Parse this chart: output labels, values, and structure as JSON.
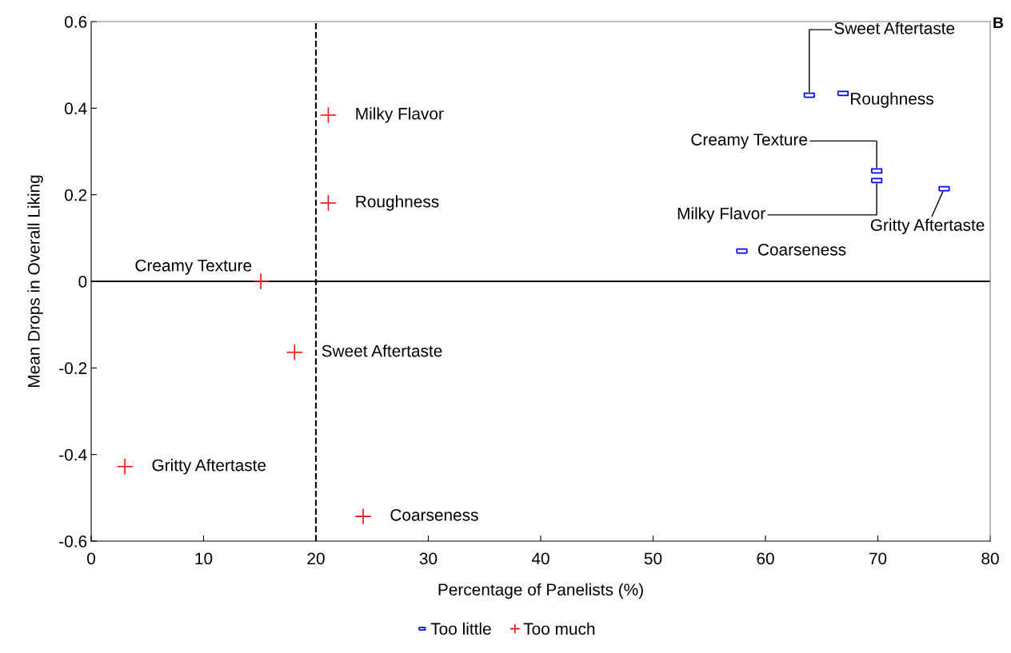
{
  "chart_data": {
    "type": "scatter",
    "xlabel": "Percentage of Panelists (%)",
    "ylabel": "Mean Drops in Overall Liking",
    "series": [
      {
        "name": "Too little",
        "color": "#0000ff",
        "marker": "square",
        "x": [
          63.9,
          66.9,
          69.9,
          69.9,
          75.9,
          57.9
        ],
        "values": [
          0.43,
          0.434,
          0.255,
          0.233,
          0.214,
          0.07
        ]
      },
      {
        "name": "Too much",
        "color": "#ff0000",
        "marker": "cross",
        "x": [
          21.1,
          21.1,
          15.1,
          18.1,
          3.0,
          24.2
        ],
        "values": [
          0.384,
          0.181,
          0.0,
          -0.164,
          -0.428,
          -0.543
        ]
      }
    ],
    "xlim": [
      0,
      80
    ],
    "xticks": [
      0,
      10,
      20,
      30,
      40,
      50,
      60,
      70,
      80
    ],
    "ylim": [
      -0.6,
      0.6
    ],
    "yticks": [
      -0.6,
      -0.4,
      -0.2,
      0,
      0.2,
      0.4,
      0.6
    ],
    "ref_lines": [
      {
        "axis": "x",
        "value": 20,
        "color": "#000000",
        "line_style": "dashed"
      },
      {
        "axis": "y",
        "value": 0,
        "color": "#000000",
        "line_style": "solid"
      }
    ],
    "annotations": [
      {
        "text": "Sweet Aftertaste",
        "x": 63.9,
        "y": 0.43
      },
      {
        "text": "Roughness",
        "x": 66.9,
        "y": 0.434
      },
      {
        "text": "Creamy Texture",
        "x": 69.9,
        "y": 0.255
      },
      {
        "text": "Milky Flavor",
        "x": 69.9,
        "y": 0.233
      },
      {
        "text": "Gritty Aftertaste",
        "x": 75.9,
        "y": 0.214
      },
      {
        "text": "Coarseness",
        "x": 57.9,
        "y": 0.07
      },
      {
        "text": "Milky Flavor",
        "x": 21.1,
        "y": 0.384
      },
      {
        "text": "Roughness",
        "x": 21.1,
        "y": 0.181
      },
      {
        "text": "Creamy Texture",
        "x": 15.1,
        "y": 0.0
      },
      {
        "text": "Sweet Aftertaste",
        "x": 18.1,
        "y": -0.164
      },
      {
        "text": "Gritty Aftertaste",
        "x": 3.0,
        "y": -0.428
      },
      {
        "text": "Coarseness",
        "x": 24.2,
        "y": -0.543
      },
      "B"
    ],
    "grid": false,
    "legend": "bottom"
  }
}
